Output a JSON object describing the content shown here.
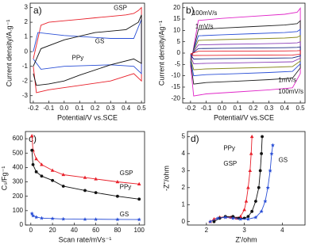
{
  "chart_data": [
    {
      "type": "line",
      "label": "a)",
      "xlabel": "Potential/V vs.SCE",
      "ylabel": "Current density/A.g⁻¹",
      "xlim": [
        -0.22,
        0.52
      ],
      "ylim": [
        -3.5,
        3.3
      ],
      "xticks": [
        -0.2,
        -0.1,
        {
          "value": 0,
          "label": "0.0"
        },
        0.1,
        0.2,
        0.3,
        0.4,
        0.5
      ],
      "yticks": [
        -3,
        -2,
        -1,
        0,
        1,
        2,
        3
      ],
      "series": [
        {
          "name": "GSP",
          "color": "#e8202a",
          "x": [
            -0.2,
            -0.15,
            -0.1,
            0,
            0.1,
            0.2,
            0.3,
            0.4,
            0.45,
            0.48,
            0.5,
            0.5,
            0.45,
            0.3,
            0.1,
            -0.1,
            -0.18,
            -0.2
          ],
          "values": [
            -0.5,
            1.8,
            2.0,
            2.1,
            2.2,
            2.3,
            2.4,
            2.5,
            2.6,
            2.8,
            3.0,
            -2.0,
            -1.5,
            -2.0,
            -2.3,
            -2.6,
            -2.8,
            -1.0
          ]
        },
        {
          "name": "GS",
          "color": "#2a4fd6",
          "x": [
            -0.2,
            -0.17,
            0,
            0.3,
            0.45,
            0.5,
            0.5,
            0.45,
            0.3,
            0,
            -0.15,
            -0.2
          ],
          "values": [
            0,
            1.3,
            1.1,
            0.9,
            0.9,
            2.2,
            -1.5,
            -1.0,
            -0.9,
            -1.0,
            -1.2,
            -0.5
          ]
        },
        {
          "name": "PPy",
          "color": "#111111",
          "x": [
            -0.2,
            -0.15,
            0,
            0.2,
            0.4,
            0.48,
            0.5,
            0.5,
            0.45,
            0.3,
            0.1,
            0,
            -0.1,
            -0.18,
            -0.2
          ],
          "values": [
            -1.0,
            0.2,
            0.8,
            1.3,
            1.5,
            2.0,
            2.5,
            -0.8,
            -0.5,
            -0.9,
            -1.6,
            -2.0,
            -2.2,
            -2.3,
            -1.5
          ]
        }
      ]
    },
    {
      "type": "line",
      "label": "b)",
      "xlabel": "Potential/V vs.SCE",
      "ylabel": "Current density/Ag⁻¹",
      "xlim": [
        -0.25,
        0.53
      ],
      "ylim": [
        -22,
        22
      ],
      "xticks": [
        -0.2,
        -0.1,
        {
          "value": 0,
          "label": "0.0"
        },
        0.1,
        0.2,
        0.3,
        0.4,
        0.5
      ],
      "yticks": [
        -20,
        -15,
        -10,
        -5,
        0,
        5,
        10,
        15,
        20
      ],
      "annotations": [
        "100mV/s",
        "1mV/s",
        "1mV/s",
        "100mV/s"
      ],
      "series": [
        {
          "color": "#e026c8",
          "x": [
            -0.2,
            -0.15,
            0,
            0.2,
            0.4,
            0.48,
            0.5,
            0.5,
            0.45,
            0.3,
            0.1,
            -0.1,
            -0.18,
            -0.2
          ],
          "values": [
            -5.4,
            14.4,
            15.3,
            16.2,
            17.1,
            18,
            19.8,
            -9,
            -15.3,
            -16.2,
            -17.1,
            -18,
            -18.9,
            -5.4
          ]
        },
        {
          "color": "#222222",
          "x": [
            -0.2,
            -0.15,
            0,
            0.2,
            0.4,
            0.48,
            0.5,
            0.5,
            0.45,
            0.3,
            0.1,
            -0.1,
            -0.18,
            -0.2
          ],
          "values": [
            -3.9,
            10.4,
            11.05,
            11.7,
            12.35,
            13,
            14.3,
            -6.5,
            -11.05,
            -11.7,
            -12.35,
            -13,
            -13.65,
            -3.9
          ]
        },
        {
          "color": "#2a4fd6",
          "x": [
            -0.2,
            -0.15,
            0,
            0.2,
            0.4,
            0.48,
            0.5,
            0.5,
            0.45,
            0.3,
            0.1,
            -0.1,
            -0.18,
            -0.2
          ],
          "values": [
            -2.85,
            7.6,
            8.08,
            8.55,
            9.03,
            9.5,
            10.45,
            -4.75,
            -8.08,
            -8.55,
            -9.03,
            -9.5,
            -9.98,
            -2.85
          ]
        },
        {
          "color": "#8a8a20",
          "x": [
            -0.2,
            -0.15,
            0,
            0.2,
            0.4,
            0.48,
            0.5,
            0.5,
            0.45,
            0.3,
            0.1,
            -0.1,
            -0.18,
            -0.2
          ],
          "values": [
            -2.1,
            5.6,
            5.95,
            6.3,
            6.65,
            7,
            7.7,
            -3.5,
            -5.95,
            -6.3,
            -6.65,
            -7,
            -7.35,
            -2.1
          ]
        },
        {
          "color": "#8a3fb8",
          "x": [
            -0.2,
            -0.15,
            0,
            0.2,
            0.4,
            0.48,
            0.5,
            0.5,
            0.45,
            0.3,
            0.1,
            -0.1,
            -0.18,
            -0.2
          ],
          "values": [
            -1.35,
            3.6,
            3.83,
            4.05,
            4.28,
            4.5,
            4.95,
            -2.25,
            -3.83,
            -4.05,
            -4.28,
            -4.5,
            -4.73,
            -1.35
          ]
        },
        {
          "color": "#1a2a80",
          "x": [
            -0.2,
            -0.15,
            0,
            0.2,
            0.4,
            0.48,
            0.5,
            0.5,
            0.45,
            0.3,
            0.1,
            -0.1,
            -0.18,
            -0.2
          ],
          "values": [
            -0.75,
            2,
            2.13,
            2.25,
            2.38,
            2.5,
            2.75,
            -1.25,
            -2.13,
            -2.25,
            -2.38,
            -2.5,
            -2.63,
            -0.75
          ]
        },
        {
          "color": "#e8202a",
          "x": [
            -0.2,
            -0.15,
            0,
            0.2,
            0.4,
            0.48,
            0.5,
            0.5,
            0.45,
            0.3,
            0.1,
            -0.1,
            -0.18,
            -0.2
          ],
          "values": [
            -0.3,
            0.8,
            0.85,
            0.9,
            0.95,
            1,
            1.1,
            -0.5,
            -0.85,
            -0.9,
            -0.95,
            -1,
            -1.05,
            -0.3
          ]
        }
      ]
    },
    {
      "type": "line",
      "label": "c)",
      "xlabel": "Scan rate/mVs⁻¹",
      "ylabel": "Cₛ/Fg⁻¹",
      "markers": true,
      "xlim": [
        -5,
        105
      ],
      "ylim": [
        0,
        650
      ],
      "xticks": [
        0,
        20,
        40,
        60,
        80,
        100
      ],
      "yticks": [
        0,
        100,
        200,
        300,
        400,
        500,
        600
      ],
      "x": [
        1,
        2,
        5,
        10,
        20,
        30,
        50,
        60,
        80,
        100
      ],
      "series": [
        {
          "name": "GSP",
          "color": "#e8202a",
          "marker": "triangle",
          "values": [
            620,
            520,
            460,
            420,
            380,
            350,
            330,
            320,
            300,
            285
          ]
        },
        {
          "name": "PPy",
          "color": "#111111",
          "marker": "circle",
          "values": [
            520,
            420,
            370,
            340,
            310,
            270,
            240,
            225,
            200,
            180
          ]
        },
        {
          "name": "GS",
          "color": "#2a4fd6",
          "marker": "star",
          "values": [
            80,
            65,
            55,
            48,
            45,
            42,
            40,
            40,
            39,
            38
          ]
        }
      ]
    },
    {
      "type": "line",
      "label": "d)",
      "xlabel": "Z'/ohm",
      "ylabel": "-Z''/ohm",
      "markers": true,
      "xlim": [
        1.5,
        4.6
      ],
      "ylim": [
        -0.2,
        5.3
      ],
      "xticks": [
        2,
        3,
        4
      ],
      "yticks": [
        0,
        1,
        2,
        3,
        4,
        5
      ],
      "series": [
        {
          "name": "PPy",
          "color": "#e8202a",
          "marker": "triangle",
          "x": [
            2.1,
            2.2,
            2.35,
            2.5,
            2.65,
            2.8,
            2.9,
            3.0,
            3.05,
            3.1,
            3.15,
            3.18,
            3.2
          ],
          "values": [
            0,
            0.15,
            0.25,
            0.28,
            0.25,
            0.2,
            0.3,
            0.7,
            1.2,
            2,
            3,
            4,
            5
          ]
        },
        {
          "name": "GSP",
          "color": "#111111",
          "marker": "circle",
          "x": [
            2.2,
            2.35,
            2.5,
            2.7,
            2.85,
            3.0,
            3.1,
            3.2,
            3.3,
            3.38,
            3.42,
            3.45,
            3.47
          ],
          "values": [
            0,
            0.2,
            0.3,
            0.3,
            0.2,
            0.2,
            0.3,
            0.6,
            1.2,
            2,
            3,
            4,
            5
          ]
        },
        {
          "name": "GS",
          "color": "#2a4fd6",
          "marker": "star",
          "x": [
            2.1,
            2.3,
            2.5,
            2.7,
            2.9,
            3.1,
            3.3,
            3.45,
            3.55,
            3.62,
            3.68,
            3.72,
            3.75
          ],
          "values": [
            0,
            0.2,
            0.25,
            0.2,
            0.15,
            0.15,
            0.25,
            0.6,
            1.2,
            2,
            3,
            4,
            4.5
          ]
        }
      ]
    }
  ]
}
